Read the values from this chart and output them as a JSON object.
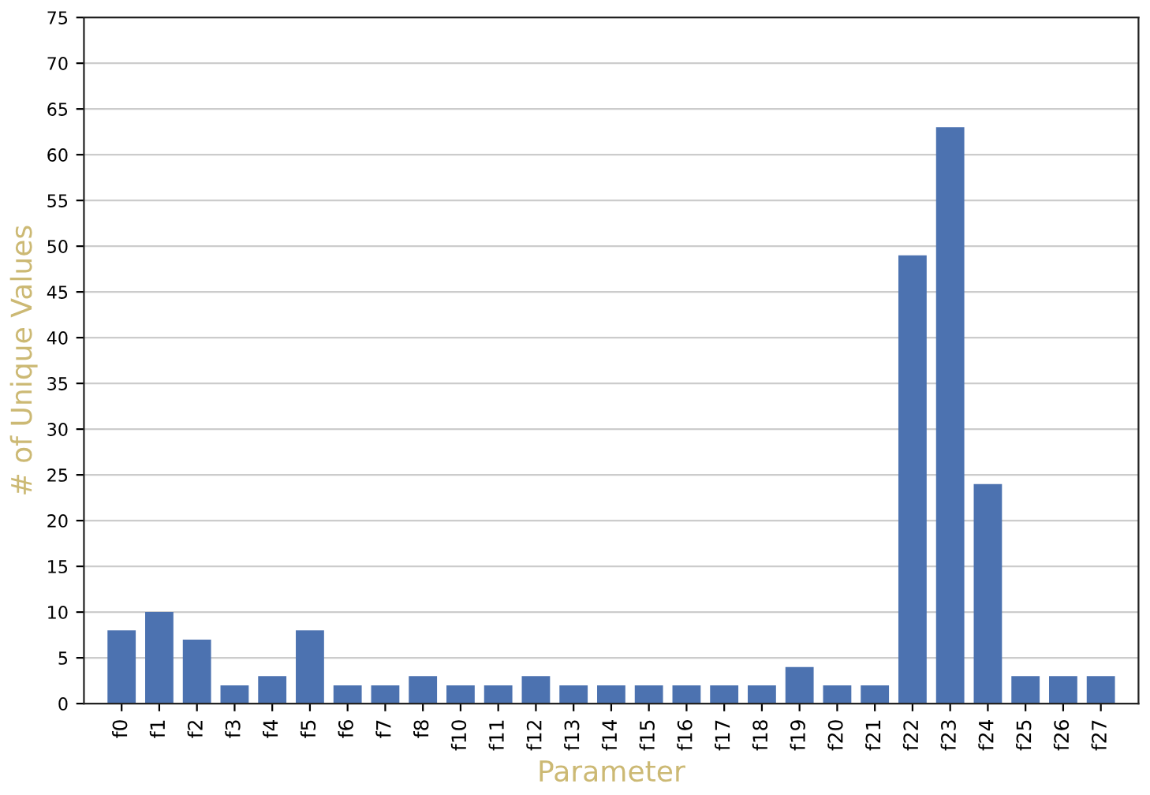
{
  "chart_data": {
    "type": "bar",
    "xlabel": "Parameter",
    "ylabel": "# of Unique Values",
    "categories": [
      "f0",
      "f1",
      "f2",
      "f3",
      "f4",
      "f5",
      "f6",
      "f7",
      "f8",
      "f10",
      "f11",
      "f12",
      "f13",
      "f14",
      "f15",
      "f16",
      "f17",
      "f18",
      "f19",
      "f20",
      "f21",
      "f22",
      "f23",
      "f24",
      "f25",
      "f26",
      "f27"
    ],
    "values": [
      8,
      10,
      7,
      2,
      3,
      8,
      2,
      2,
      3,
      2,
      2,
      3,
      2,
      2,
      2,
      2,
      2,
      2,
      4,
      2,
      2,
      49,
      63,
      24,
      3,
      3,
      3
    ],
    "color": "#4c72b0",
    "ylim": [
      0,
      75
    ],
    "yticks": [
      0,
      5,
      10,
      15,
      20,
      25,
      30,
      35,
      40,
      45,
      50,
      55,
      60,
      65,
      70,
      75
    ],
    "grid": "y"
  }
}
